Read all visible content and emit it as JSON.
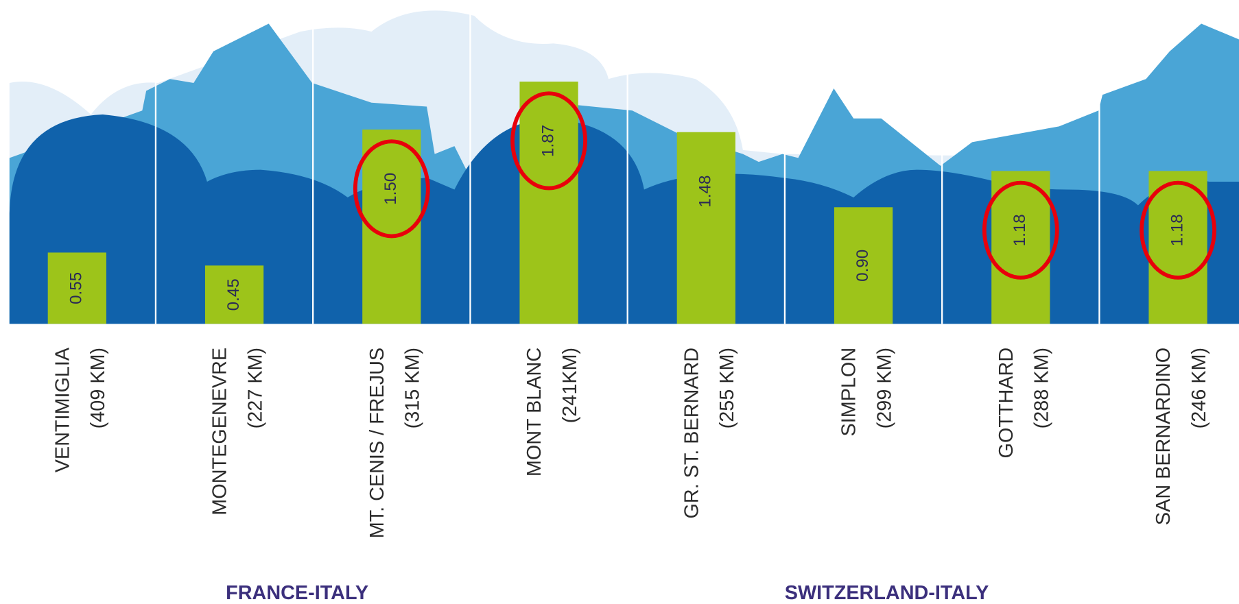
{
  "chart_data": {
    "type": "bar",
    "categories": [
      "VENTIMIGLIA",
      "MONTEGENEVRE",
      "MT. CENIS / FREJUS",
      "MONT BLANC",
      "GR. ST. BERNARD",
      "SIMPLON",
      "GOTTHARD",
      "SAN BERNARDINO"
    ],
    "distances": [
      "(409 KM)",
      "(227 KM)",
      "(315 KM)",
      "(241KM)",
      "(255 KM)",
      "(299 KM)",
      "(288 KM)",
      "(246 KM)"
    ],
    "values": [
      0.55,
      0.45,
      1.5,
      1.87,
      1.48,
      0.9,
      1.18,
      1.18
    ],
    "value_labels": [
      "0.55",
      "0.45",
      "1.50",
      "1.87",
      "1.48",
      "0.90",
      "1.18",
      "1.18"
    ],
    "highlighted": [
      false,
      false,
      true,
      true,
      false,
      false,
      true,
      true
    ],
    "highlight_color": "#e8000b",
    "color": "#9dc41a",
    "ylim": [
      0,
      2.5
    ],
    "groups": [
      {
        "label": "FRANCE-ITALY",
        "count": 4
      },
      {
        "label": "SWITZERLAND-ITALY",
        "count": 4
      }
    ]
  }
}
